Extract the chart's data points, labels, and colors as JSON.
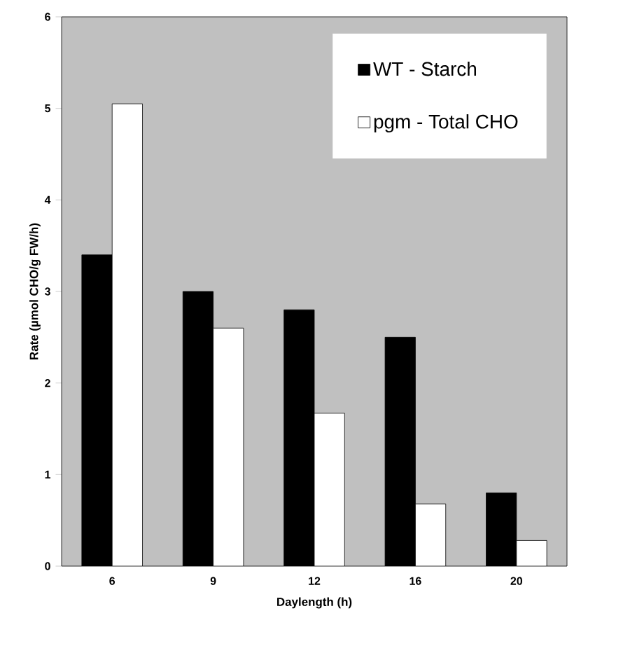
{
  "chart_data": {
    "type": "bar",
    "xlabel": "Daylength (h)",
    "ylabel": "Rate (µmol CHO/g FW/h)",
    "categories": [
      "6",
      "9",
      "12",
      "16",
      "20"
    ],
    "series": [
      {
        "name": "WT - Starch",
        "color": "#000000",
        "values": [
          3.4,
          3.0,
          2.8,
          2.5,
          0.8
        ]
      },
      {
        "name": "pgm - Total CHO",
        "color": "#ffffff",
        "values": [
          5.05,
          2.6,
          1.67,
          0.68,
          0.28
        ]
      }
    ],
    "ylim": [
      0,
      6
    ],
    "yticks": [
      0,
      1,
      2,
      3,
      4,
      5,
      6
    ],
    "legend": "top right"
  }
}
